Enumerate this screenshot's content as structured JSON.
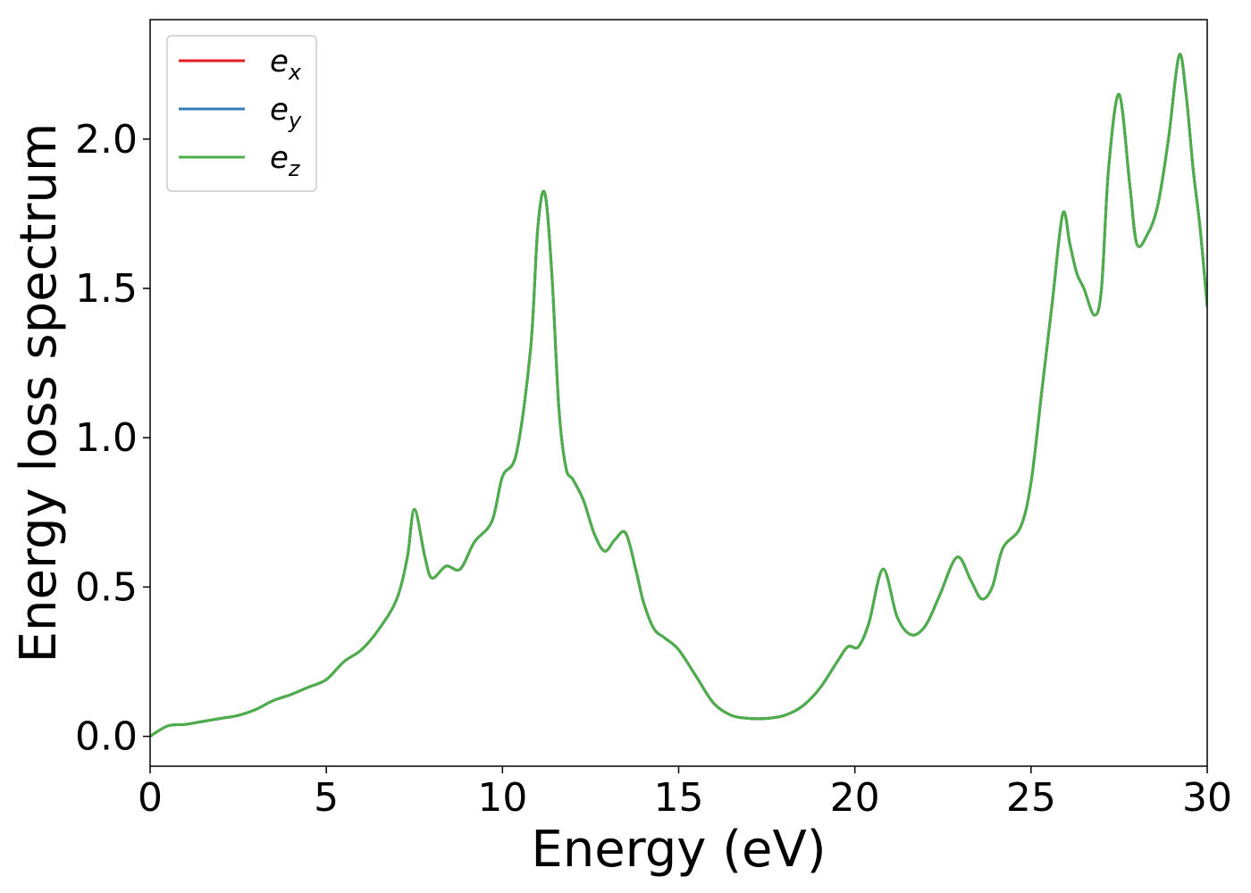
{
  "chart_data": {
    "type": "line",
    "xlabel": "Energy (eV)",
    "ylabel": "Energy loss spectrum",
    "xlim": [
      0,
      30
    ],
    "ylim": [
      -0.1,
      2.4
    ],
    "xticks": [
      0,
      5,
      10,
      15,
      20,
      25,
      30
    ],
    "xtick_labels": [
      "0",
      "5",
      "10",
      "15",
      "20",
      "25",
      "30"
    ],
    "yticks": [
      0.0,
      0.5,
      1.0,
      1.5,
      2.0
    ],
    "ytick_labels": [
      "0.0",
      "0.5",
      "1.0",
      "1.5",
      "2.0"
    ],
    "grid": false,
    "legend_position": "top-left",
    "x": [
      0,
      0.5,
      1.0,
      1.5,
      2.0,
      2.5,
      3.0,
      3.5,
      4.0,
      4.5,
      5.0,
      5.5,
      6.0,
      6.5,
      7.0,
      7.3,
      7.5,
      7.8,
      8.0,
      8.4,
      8.8,
      9.2,
      9.7,
      10.0,
      10.4,
      10.8,
      11.0,
      11.2,
      11.4,
      11.6,
      11.8,
      12.0,
      12.3,
      12.6,
      12.9,
      13.2,
      13.5,
      13.8,
      14.0,
      14.3,
      14.6,
      15.0,
      15.5,
      16.0,
      16.5,
      17.0,
      17.5,
      18.0,
      18.5,
      19.0,
      19.5,
      19.8,
      20.1,
      20.4,
      20.8,
      21.2,
      21.6,
      22.0,
      22.4,
      22.9,
      23.3,
      23.6,
      23.9,
      24.2,
      24.7,
      25.0,
      25.3,
      25.6,
      25.9,
      26.1,
      26.3,
      26.5,
      26.8,
      27.0,
      27.2,
      27.5,
      27.8,
      28.0,
      28.3,
      28.6,
      28.9,
      29.2,
      29.4,
      29.6,
      29.8,
      30.0
    ],
    "series": [
      {
        "name": "e_x",
        "color": "#e41a1c",
        "y": [
          0.0,
          0.035,
          0.04,
          0.05,
          0.06,
          0.07,
          0.09,
          0.12,
          0.14,
          0.165,
          0.19,
          0.25,
          0.29,
          0.36,
          0.46,
          0.6,
          0.76,
          0.6,
          0.53,
          0.57,
          0.56,
          0.65,
          0.72,
          0.87,
          0.95,
          1.3,
          1.7,
          1.82,
          1.55,
          1.1,
          0.9,
          0.86,
          0.79,
          0.68,
          0.62,
          0.66,
          0.68,
          0.55,
          0.45,
          0.36,
          0.33,
          0.29,
          0.2,
          0.11,
          0.07,
          0.06,
          0.06,
          0.07,
          0.1,
          0.16,
          0.25,
          0.3,
          0.3,
          0.38,
          0.56,
          0.4,
          0.34,
          0.37,
          0.47,
          0.6,
          0.52,
          0.46,
          0.5,
          0.63,
          0.7,
          0.85,
          1.15,
          1.45,
          1.75,
          1.65,
          1.55,
          1.5,
          1.41,
          1.5,
          1.9,
          2.15,
          1.85,
          1.65,
          1.68,
          1.78,
          2.0,
          2.28,
          2.15,
          1.9,
          1.7,
          1.44
        ]
      },
      {
        "name": "e_y",
        "color": "#377eb8",
        "y": [
          0.0,
          0.035,
          0.04,
          0.05,
          0.06,
          0.07,
          0.09,
          0.12,
          0.14,
          0.165,
          0.19,
          0.25,
          0.29,
          0.36,
          0.46,
          0.6,
          0.76,
          0.6,
          0.53,
          0.57,
          0.56,
          0.65,
          0.72,
          0.87,
          0.95,
          1.3,
          1.7,
          1.82,
          1.55,
          1.1,
          0.9,
          0.86,
          0.79,
          0.68,
          0.62,
          0.66,
          0.68,
          0.55,
          0.45,
          0.36,
          0.33,
          0.29,
          0.2,
          0.11,
          0.07,
          0.06,
          0.06,
          0.07,
          0.1,
          0.16,
          0.25,
          0.3,
          0.3,
          0.38,
          0.56,
          0.4,
          0.34,
          0.37,
          0.47,
          0.6,
          0.52,
          0.46,
          0.5,
          0.63,
          0.7,
          0.85,
          1.15,
          1.45,
          1.75,
          1.65,
          1.55,
          1.5,
          1.41,
          1.5,
          1.9,
          2.15,
          1.85,
          1.65,
          1.68,
          1.78,
          2.0,
          2.28,
          2.15,
          1.9,
          1.7,
          1.44
        ]
      },
      {
        "name": "e_z",
        "color": "#4daf4a",
        "y": [
          0.0,
          0.035,
          0.04,
          0.05,
          0.06,
          0.07,
          0.09,
          0.12,
          0.14,
          0.165,
          0.19,
          0.25,
          0.29,
          0.36,
          0.46,
          0.6,
          0.76,
          0.6,
          0.53,
          0.57,
          0.56,
          0.65,
          0.72,
          0.87,
          0.95,
          1.3,
          1.7,
          1.82,
          1.55,
          1.1,
          0.9,
          0.86,
          0.79,
          0.68,
          0.62,
          0.66,
          0.68,
          0.55,
          0.45,
          0.36,
          0.33,
          0.29,
          0.2,
          0.11,
          0.07,
          0.06,
          0.06,
          0.07,
          0.1,
          0.16,
          0.25,
          0.3,
          0.3,
          0.38,
          0.56,
          0.4,
          0.34,
          0.37,
          0.47,
          0.6,
          0.52,
          0.46,
          0.5,
          0.63,
          0.7,
          0.85,
          1.15,
          1.45,
          1.75,
          1.65,
          1.55,
          1.5,
          1.41,
          1.5,
          1.9,
          2.15,
          1.85,
          1.65,
          1.68,
          1.78,
          2.0,
          2.28,
          2.15,
          1.9,
          1.7,
          1.44
        ]
      }
    ],
    "legend": [
      {
        "base": "e",
        "sub": "x",
        "color": "#e41a1c"
      },
      {
        "base": "e",
        "sub": "y",
        "color": "#377eb8"
      },
      {
        "base": "e",
        "sub": "z",
        "color": "#4daf4a"
      }
    ]
  }
}
